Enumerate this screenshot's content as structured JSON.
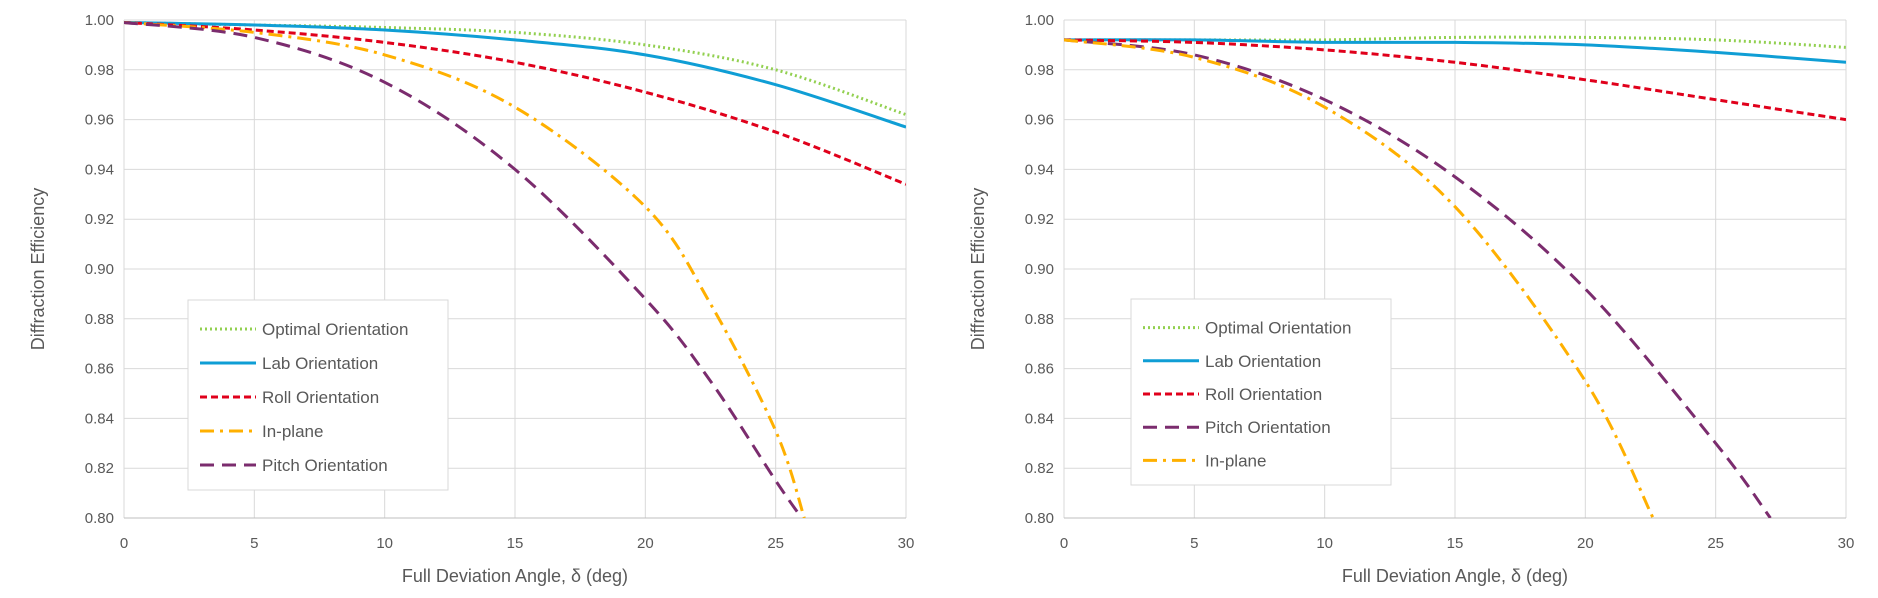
{
  "chart_data": [
    {
      "type": "line",
      "title": "",
      "xlabel": "Full Deviation Angle, δ (deg)",
      "ylabel": "Diffraction Efficiency",
      "xlim": [
        0,
        30
      ],
      "ylim": [
        0.8,
        1.0
      ],
      "xticks": [
        0,
        5,
        10,
        15,
        20,
        25,
        30
      ],
      "yticks": [
        0.8,
        0.82,
        0.84,
        0.86,
        0.88,
        0.9,
        0.92,
        0.94,
        0.96,
        0.98,
        1.0
      ],
      "grid": true,
      "legend_position": "bottom-left",
      "series": [
        {
          "name": "Optimal Orientation",
          "color": "#92d050",
          "dash": "dotted",
          "x": [
            0,
            5,
            10,
            15,
            20,
            25,
            30
          ],
          "y": [
            0.999,
            0.998,
            0.997,
            0.995,
            0.99,
            0.98,
            0.962
          ]
        },
        {
          "name": "Lab Orientation",
          "color": "#0f9ed5",
          "dash": "solid",
          "x": [
            0,
            5,
            10,
            15,
            20,
            25,
            30
          ],
          "y": [
            0.999,
            0.998,
            0.996,
            0.992,
            0.986,
            0.974,
            0.957
          ]
        },
        {
          "name": "Roll Orientation",
          "color": "#e0001b",
          "dash": "dashed",
          "x": [
            0,
            5,
            10,
            15,
            20,
            25,
            30
          ],
          "y": [
            0.999,
            0.996,
            0.991,
            0.983,
            0.971,
            0.955,
            0.934
          ]
        },
        {
          "name": "In-plane",
          "color": "#ffb000",
          "dash": "dashdot",
          "x": [
            0,
            5,
            10,
            15,
            20,
            22.5,
            25,
            26.1
          ],
          "y": [
            0.999,
            0.995,
            0.986,
            0.965,
            0.925,
            0.886,
            0.835,
            0.8
          ]
        },
        {
          "name": "Pitch Orientation",
          "color": "#7b2c6e",
          "dash": "longdash",
          "x": [
            0,
            5,
            10,
            15,
            20,
            22.5,
            25,
            26.0
          ],
          "y": [
            0.999,
            0.993,
            0.975,
            0.94,
            0.888,
            0.855,
            0.815,
            0.8
          ]
        }
      ]
    },
    {
      "type": "line",
      "title": "",
      "xlabel": "Full Deviation Angle, δ (deg)",
      "ylabel": "Diffraction Efficiency",
      "xlim": [
        0,
        30
      ],
      "ylim": [
        0.8,
        1.0
      ],
      "xticks": [
        0,
        5,
        10,
        15,
        20,
        25,
        30
      ],
      "yticks": [
        0.8,
        0.82,
        0.84,
        0.86,
        0.88,
        0.9,
        0.92,
        0.94,
        0.96,
        0.98,
        1.0
      ],
      "grid": true,
      "legend_position": "bottom-left",
      "series": [
        {
          "name": "Optimal Orientation",
          "color": "#92d050",
          "dash": "dotted",
          "x": [
            0,
            5,
            10,
            15,
            20,
            25,
            30
          ],
          "y": [
            0.992,
            0.992,
            0.992,
            0.993,
            0.993,
            0.992,
            0.989
          ]
        },
        {
          "name": "Lab Orientation",
          "color": "#0f9ed5",
          "dash": "solid",
          "x": [
            0,
            5,
            10,
            15,
            20,
            25,
            30
          ],
          "y": [
            0.992,
            0.992,
            0.991,
            0.991,
            0.99,
            0.987,
            0.983
          ]
        },
        {
          "name": "Roll Orientation",
          "color": "#e0001b",
          "dash": "dashed",
          "x": [
            0,
            5,
            10,
            15,
            20,
            25,
            30
          ],
          "y": [
            0.992,
            0.991,
            0.988,
            0.983,
            0.976,
            0.968,
            0.96
          ]
        },
        {
          "name": "Pitch Orientation",
          "color": "#7b2c6e",
          "dash": "longdash",
          "x": [
            0,
            5,
            10,
            15,
            20,
            25,
            27.1
          ],
          "y": [
            0.992,
            0.986,
            0.968,
            0.937,
            0.892,
            0.83,
            0.8
          ]
        },
        {
          "name": "In-plane",
          "color": "#ffb000",
          "dash": "dashdot",
          "x": [
            0,
            5,
            10,
            15,
            20,
            22.6
          ],
          "y": [
            0.992,
            0.985,
            0.965,
            0.925,
            0.855,
            0.8
          ]
        }
      ]
    }
  ]
}
